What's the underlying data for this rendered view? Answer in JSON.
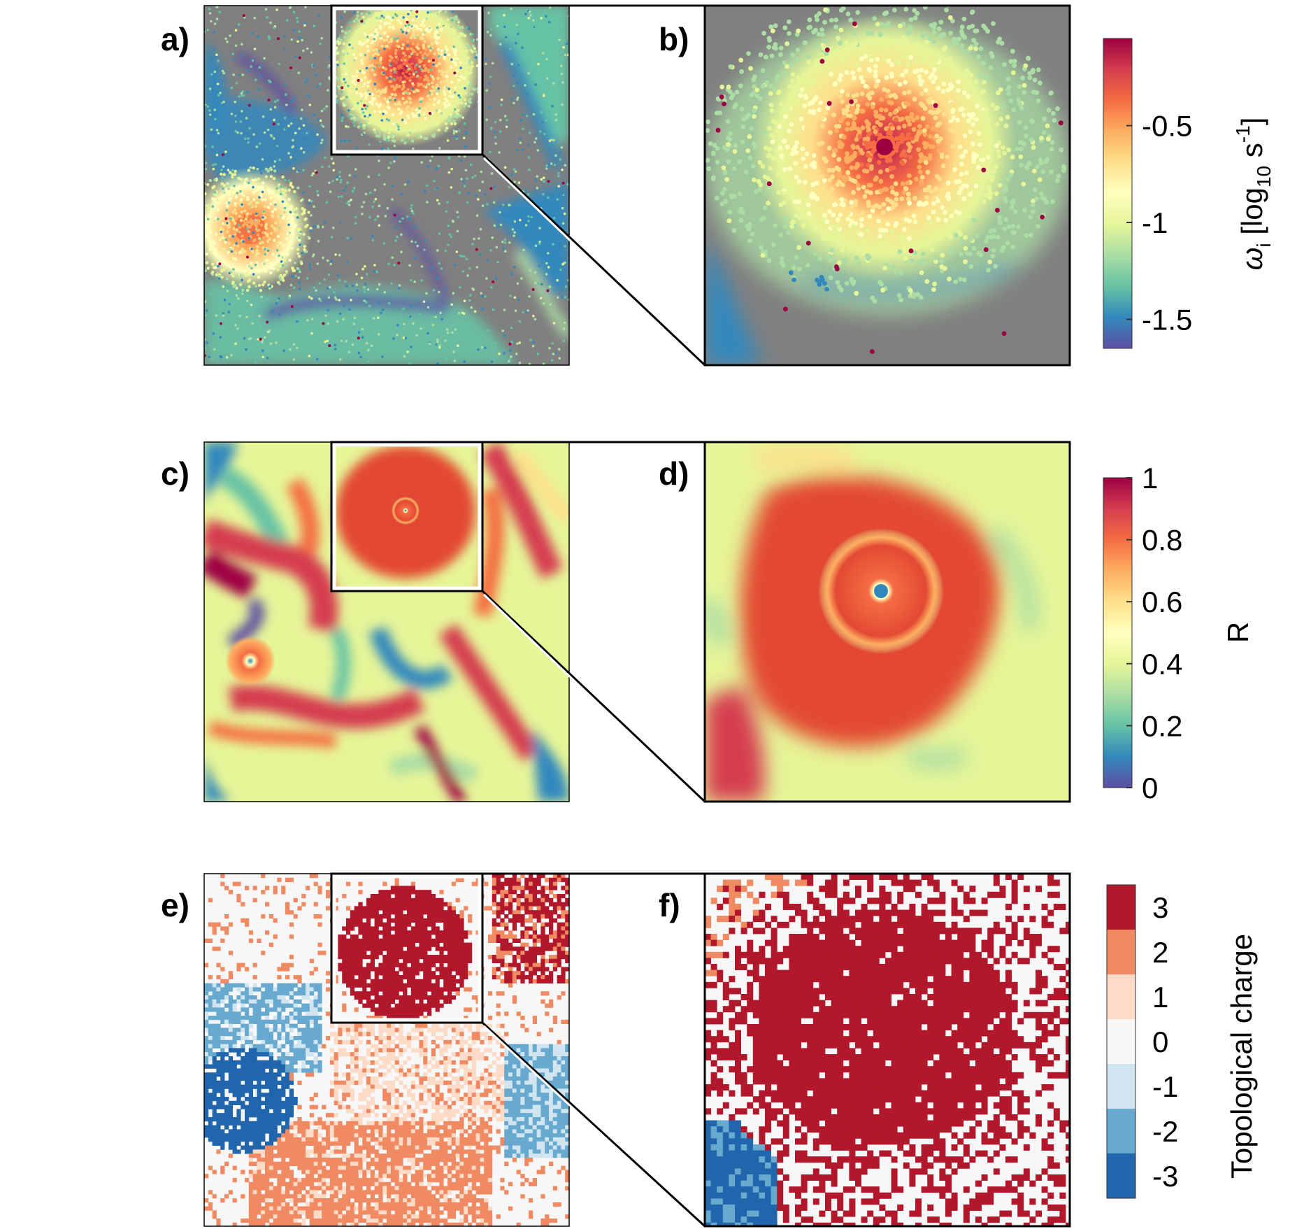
{
  "panels": {
    "a": "a)",
    "b": "b)",
    "c": "c)",
    "d": "d)",
    "e": "e)",
    "f": "f)"
  },
  "colorbars": {
    "omega": {
      "ticks": [
        "-0.5",
        "-1",
        "-1.5"
      ],
      "ticks_values": [
        -0.5,
        -1,
        -1.5
      ],
      "range": [
        -1.65,
        -0.05
      ],
      "title_symbol": "ω",
      "title_sub": "i",
      "title_rest": " [log",
      "title_sub2": "10",
      "title_unit": " s",
      "title_sup": "-1",
      "title_close": "]"
    },
    "R": {
      "ticks": [
        "1",
        "0.8",
        "0.6",
        "0.4",
        "0.2",
        "0"
      ],
      "ticks_values": [
        1,
        0.8,
        0.6,
        0.4,
        0.2,
        0
      ],
      "range": [
        0,
        1
      ],
      "title": "R"
    },
    "charge": {
      "ticks": [
        "3",
        "2",
        "1",
        "0",
        "-1",
        "-2",
        "-3"
      ],
      "title": "Topological charge"
    }
  },
  "colors": {
    "spectral": [
      "#5e4fa2",
      "#3288bd",
      "#66c2a5",
      "#abdda4",
      "#e6f598",
      "#ffffbf",
      "#fee08b",
      "#fdae61",
      "#f46d43",
      "#d53e4f",
      "#9e0142"
    ],
    "charge": [
      "#b2182b",
      "#ef8a62",
      "#fddbc7",
      "#f7f7f7",
      "#d1e5f0",
      "#67a9cf",
      "#2166ac"
    ],
    "background_gray": "#808080"
  }
}
